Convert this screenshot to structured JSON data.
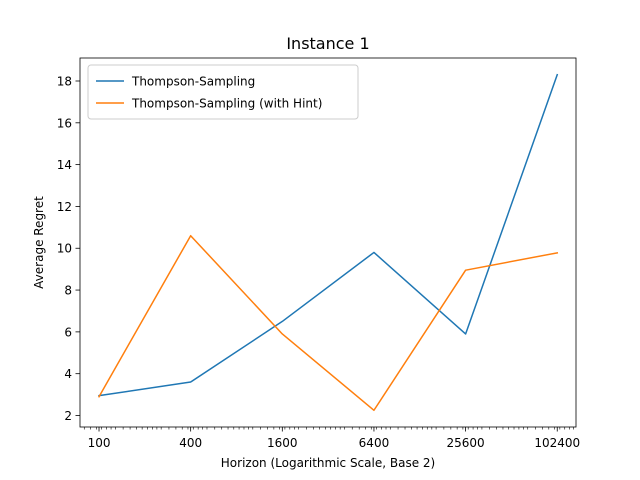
{
  "chart_data": {
    "type": "line",
    "title": "Instance 1",
    "xlabel": "Horizon (Logarithmic Scale, Base 2)",
    "ylabel": "Average Regret",
    "x_scale": "log2",
    "x": [
      100,
      400,
      1600,
      6400,
      25600,
      102400
    ],
    "x_tick_labels": [
      "100",
      "400",
      "1600",
      "6400",
      "25600",
      "102400"
    ],
    "xlim": [
      75,
      136000
    ],
    "ylim": [
      1.45,
      19.1
    ],
    "y_ticks": [
      2,
      4,
      6,
      8,
      10,
      12,
      14,
      16,
      18
    ],
    "grid": false,
    "legend_position": "top-left",
    "series": [
      {
        "name": "Thompson-Sampling",
        "color": "#1f77b4",
        "values": [
          2.95,
          3.6,
          6.5,
          9.8,
          5.9,
          18.3
        ]
      },
      {
        "name": "Thompson-Sampling (with Hint)",
        "color": "#ff7f0e",
        "values": [
          2.9,
          10.6,
          5.9,
          2.25,
          8.95,
          9.78
        ]
      }
    ]
  }
}
